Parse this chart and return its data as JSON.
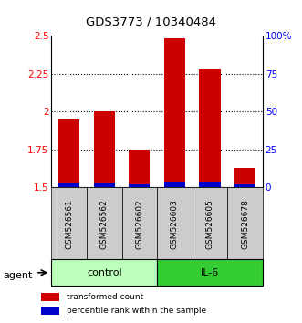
{
  "title": "GDS3773 / 10340484",
  "samples": [
    "GSM526561",
    "GSM526562",
    "GSM526602",
    "GSM526603",
    "GSM526605",
    "GSM526678"
  ],
  "red_values": [
    1.95,
    2.0,
    1.75,
    2.48,
    2.28,
    1.63
  ],
  "blue_heights": [
    0.025,
    0.025,
    0.02,
    0.03,
    0.03,
    0.02
  ],
  "baseline": 1.5,
  "ylim": [
    1.5,
    2.5
  ],
  "yticks_left": [
    1.5,
    1.75,
    2.0,
    2.25,
    2.5
  ],
  "ytick_labels_left": [
    "1.5",
    "1.75",
    "2",
    "2.25",
    "2.5"
  ],
  "yticks_right": [
    0,
    25,
    50,
    75,
    100
  ],
  "ytick_labels_right": [
    "0",
    "25",
    "50",
    "75",
    "100%"
  ],
  "groups": [
    {
      "label": "control",
      "indices": [
        0,
        1,
        2
      ],
      "color": "#bbffbb"
    },
    {
      "label": "IL-6",
      "indices": [
        3,
        4,
        5
      ],
      "color": "#33cc33"
    }
  ],
  "group_box_color": "#cccccc",
  "red_color": "#cc0000",
  "blue_color": "#0000cc",
  "agent_label": "agent",
  "legend_items": [
    {
      "color": "#cc0000",
      "label": "transformed count"
    },
    {
      "color": "#0000cc",
      "label": "percentile rank within the sample"
    }
  ],
  "gridline_values": [
    1.75,
    2.0,
    2.25
  ],
  "bar_width": 0.6
}
